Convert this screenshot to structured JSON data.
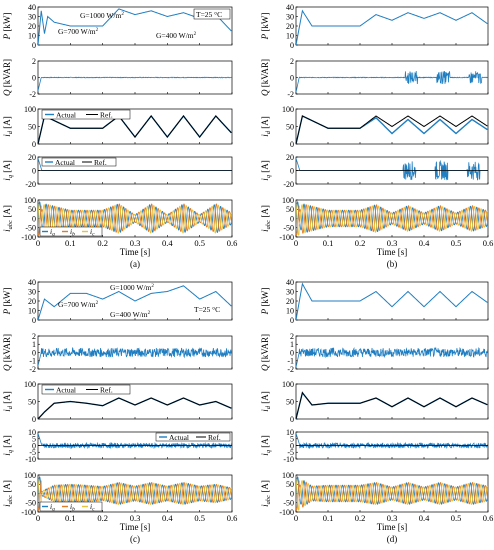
{
  "figure": {
    "panel_labels": [
      "(a)",
      "(b)",
      "(c)",
      "(d)"
    ],
    "xlabel": "Time [s]",
    "xticks": [
      "0",
      "0.1",
      "0.2",
      "0.3",
      "0.4",
      "0.5",
      "0.6"
    ]
  },
  "rows": {
    "P": {
      "symbol": "P",
      "unit": " [kW]",
      "ylim": [
        0,
        40
      ],
      "yticks": [
        "0",
        "10",
        "20",
        "30",
        "40"
      ]
    },
    "Q": {
      "symbol": "Q",
      "unit": " [kVAR]",
      "ylim": [
        -2,
        2
      ],
      "yticks": [
        "-2",
        "0",
        "2"
      ]
    },
    "id": {
      "symbol": "i",
      "sub": "d",
      "unit": " [A]",
      "ylim": [
        0,
        100
      ],
      "yticks": [
        "0",
        "50",
        "100"
      ]
    },
    "iq": {
      "symbol": "i",
      "sub": "q",
      "unit": " [A]",
      "ylim": [
        -20,
        20
      ],
      "yticks": [
        "-20",
        "0",
        "20"
      ]
    },
    "iabc": {
      "symbol": "i",
      "sub": "abc",
      "unit": " [A]",
      "ylim": [
        -100,
        100
      ],
      "yticks": [
        "-100",
        "-50",
        "0",
        "50",
        "100"
      ]
    }
  },
  "rows_cd": {
    "Q": {
      "ylim": [
        -2,
        2
      ],
      "yticks": [
        "-2",
        "-1",
        "0",
        "1",
        "2"
      ]
    },
    "iq": {
      "ylim": [
        -10,
        10
      ],
      "yticks": [
        "-10",
        "-5",
        "0",
        "5",
        "10"
      ]
    }
  },
  "annotations": {
    "g1000": "G=1000 W/m",
    "g700": "G=700 W/m",
    "g400": "G=400 W/m",
    "sup2": "2",
    "temp": "T=25 °C"
  },
  "legend": {
    "actual": "Actual",
    "ref": "Ref.",
    "ia": "i",
    "ib": "i",
    "ic": "i",
    "sub_a": "a",
    "sub_b": "b",
    "sub_c": "c"
  },
  "colors": {
    "actual": "#1f7ec1",
    "ref": "#000000",
    "phase_a": "#1f7ec1",
    "phase_b": "#e07b27",
    "phase_c": "#e8c23a"
  },
  "chart_data": [
    {
      "type": "line",
      "panel": "(a)",
      "x_range": [
        0,
        0.6
      ],
      "series": [
        {
          "name": "P",
          "x": [
            0,
            0.01,
            0.02,
            0.03,
            0.05,
            0.1,
            0.15,
            0.2,
            0.25,
            0.3,
            0.35,
            0.4,
            0.45,
            0.5,
            0.55,
            0.6
          ],
          "values": [
            0,
            36,
            12,
            30,
            24,
            20,
            20,
            20,
            38,
            32,
            36,
            30,
            34,
            28,
            32,
            14
          ]
        },
        {
          "name": "Q",
          "values_note_free": true,
          "x": [
            0,
            0.02,
            0.6
          ],
          "values": [
            0,
            0,
            0
          ]
        },
        {
          "name": "Actual",
          "x": [
            0,
            0.02,
            0.1,
            0.2,
            0.25,
            0.3,
            0.35,
            0.4,
            0.45,
            0.5,
            0.55,
            0.6
          ],
          "values": [
            0,
            80,
            45,
            45,
            80,
            20,
            80,
            20,
            80,
            20,
            80,
            30
          ]
        },
        {
          "name": "Ref.",
          "x": [
            0,
            0.02,
            0.1,
            0.2,
            0.25,
            0.3,
            0.35,
            0.4,
            0.45,
            0.5,
            0.55,
            0.6
          ],
          "values": [
            0,
            80,
            45,
            45,
            80,
            20,
            80,
            20,
            80,
            20,
            80,
            30
          ]
        },
        {
          "name": "i_q",
          "x": [
            0,
            0.02,
            0.6
          ],
          "values": [
            20,
            0,
            0
          ]
        },
        {
          "name": "i_a",
          "amplitude_range": [
            30,
            80
          ],
          "frequency_hz": 50
        },
        {
          "name": "i_b",
          "amplitude_range": [
            30,
            80
          ],
          "frequency_hz": 50
        },
        {
          "name": "i_c",
          "amplitude_range": [
            30,
            80
          ],
          "frequency_hz": 50
        }
      ]
    },
    {
      "type": "line",
      "panel": "(b)",
      "x_range": [
        0,
        0.6
      ],
      "series": [
        {
          "name": "P",
          "x": [
            0,
            0.02,
            0.05,
            0.1,
            0.2,
            0.25,
            0.3,
            0.35,
            0.4,
            0.45,
            0.5,
            0.55,
            0.6
          ],
          "values": [
            0,
            36,
            20,
            20,
            20,
            32,
            26,
            34,
            28,
            34,
            26,
            34,
            22
          ]
        },
        {
          "name": "Q",
          "x": [
            0,
            0.3,
            0.6
          ],
          "values": [
            0,
            0,
            0
          ]
        },
        {
          "name": "Actual",
          "x": [
            0,
            0.02,
            0.1,
            0.2,
            0.25,
            0.3,
            0.35,
            0.4,
            0.45,
            0.5,
            0.55,
            0.6
          ],
          "values": [
            0,
            80,
            45,
            45,
            75,
            30,
            70,
            30,
            70,
            30,
            70,
            40
          ]
        },
        {
          "name": "Ref.",
          "x": [
            0,
            0.02,
            0.1,
            0.2,
            0.25,
            0.3,
            0.35,
            0.4,
            0.45,
            0.5,
            0.55,
            0.6
          ],
          "values": [
            0,
            80,
            45,
            45,
            80,
            50,
            80,
            50,
            80,
            50,
            80,
            50
          ]
        },
        {
          "name": "i_q",
          "x": [
            0,
            0.3,
            0.6
          ],
          "values": [
            0,
            0,
            0
          ]
        }
      ]
    },
    {
      "type": "line",
      "panel": "(c)",
      "x_range": [
        0,
        0.6
      ],
      "series": [
        {
          "name": "P",
          "x": [
            0,
            0.02,
            0.05,
            0.1,
            0.15,
            0.2,
            0.25,
            0.3,
            0.35,
            0.4,
            0.45,
            0.5,
            0.55,
            0.6
          ],
          "values": [
            0,
            22,
            14,
            28,
            28,
            22,
            30,
            20,
            28,
            30,
            36,
            22,
            30,
            14
          ]
        },
        {
          "name": "Q",
          "x": [
            0,
            0.6
          ],
          "values": [
            0,
            0
          ]
        },
        {
          "name": "Actual",
          "x": [
            0,
            0.02,
            0.05,
            0.1,
            0.15,
            0.2,
            0.25,
            0.3,
            0.35,
            0.4,
            0.45,
            0.5,
            0.55,
            0.6
          ],
          "values": [
            0,
            20,
            45,
            50,
            45,
            38,
            60,
            40,
            60,
            40,
            60,
            40,
            50,
            30
          ]
        },
        {
          "name": "Ref.",
          "x": [
            0,
            0.02,
            0.05,
            0.1,
            0.15,
            0.2,
            0.25,
            0.3,
            0.35,
            0.4,
            0.45,
            0.5,
            0.55,
            0.6
          ],
          "values": [
            0,
            20,
            45,
            50,
            45,
            38,
            60,
            40,
            60,
            40,
            60,
            40,
            50,
            30
          ]
        },
        {
          "name": "i_q",
          "x": [
            0,
            0.6
          ],
          "values": [
            0,
            0
          ]
        }
      ]
    },
    {
      "type": "line",
      "panel": "(d)",
      "x_range": [
        0,
        0.6
      ],
      "series": [
        {
          "name": "P",
          "x": [
            0,
            0.02,
            0.05,
            0.1,
            0.2,
            0.25,
            0.3,
            0.35,
            0.4,
            0.45,
            0.5,
            0.55,
            0.6
          ],
          "values": [
            0,
            38,
            20,
            20,
            20,
            30,
            14,
            30,
            14,
            30,
            14,
            30,
            18
          ]
        },
        {
          "name": "Q",
          "x": [
            0,
            0.6
          ],
          "values": [
            0,
            0
          ]
        },
        {
          "name": "Actual",
          "x": [
            0,
            0.02,
            0.05,
            0.1,
            0.2,
            0.25,
            0.3,
            0.35,
            0.4,
            0.45,
            0.5,
            0.55,
            0.6
          ],
          "values": [
            0,
            75,
            40,
            45,
            45,
            60,
            35,
            60,
            35,
            60,
            35,
            60,
            40
          ]
        },
        {
          "name": "Ref.",
          "x": [
            0,
            0.02,
            0.05,
            0.1,
            0.2,
            0.25,
            0.3,
            0.35,
            0.4,
            0.45,
            0.5,
            0.55,
            0.6
          ],
          "values": [
            0,
            75,
            40,
            45,
            45,
            60,
            35,
            60,
            35,
            60,
            35,
            60,
            40
          ]
        },
        {
          "name": "i_q",
          "x": [
            0,
            0.6
          ],
          "values": [
            0,
            0
          ]
        }
      ]
    }
  ]
}
